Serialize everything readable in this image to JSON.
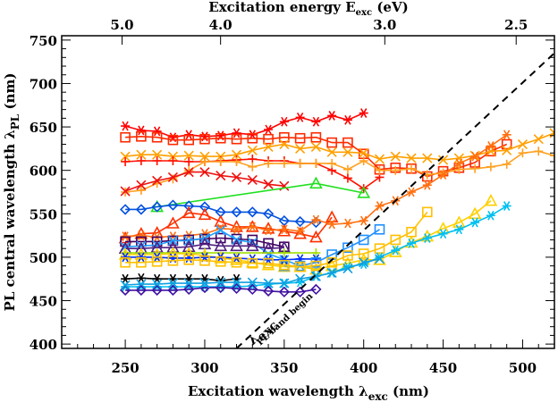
{
  "chart_data": {
    "type": "line",
    "title": "",
    "xlabel": "Excitation wavelength λ",
    "xlabel_sub": "exc",
    "xlabel_unit": "(nm)",
    "ylabel": "PL central wavelength λ",
    "ylabel_sub": "PL",
    "ylabel_unit": "(nm)",
    "top_xlabel": "Excitation energy E",
    "top_xlabel_sub": "exc",
    "top_xlabel_unit": "(eV)",
    "xlim": [
      210,
      520
    ],
    "ylim": [
      395,
      755
    ],
    "x_ticks": [
      250,
      300,
      350,
      400,
      450,
      500
    ],
    "x_tick_labels": [
      "250",
      "300",
      "350",
      "400",
      "450",
      "500"
    ],
    "y_ticks": [
      400,
      450,
      500,
      550,
      600,
      650,
      700,
      750
    ],
    "y_tick_labels": [
      "400",
      "450",
      "500",
      "550",
      "600",
      "650",
      "700",
      "750"
    ],
    "top_ticks_ev": [
      5.0,
      4.0,
      3.0,
      2.5
    ],
    "top_tick_labels": [
      "5.0",
      "4.0",
      "3.0",
      "2.5"
    ],
    "grid": false,
    "reference_line": {
      "label_upper": "λ_exc",
      "label_lower": "PL band begin",
      "style": "dashed",
      "x": [
        320,
        520
      ],
      "y": [
        395,
        735
      ]
    },
    "series": [
      {
        "name": "red-asterisk",
        "color": "#ff0000",
        "marker": "asterisk",
        "x": [
          250,
          260,
          270,
          280,
          290,
          300,
          310,
          320,
          330,
          340,
          350,
          360,
          370,
          380,
          390,
          400
        ],
        "y": [
          651,
          646,
          645,
          638,
          641,
          639,
          640,
          643,
          641,
          647,
          656,
          661,
          656,
          663,
          658,
          666
        ]
      },
      {
        "name": "red-square",
        "color": "#ff2a00",
        "marker": "square",
        "x": [
          250,
          260,
          270,
          280,
          290,
          300,
          310,
          320,
          330,
          340,
          350,
          360,
          370,
          380,
          390,
          400,
          410,
          420,
          430,
          440,
          450,
          460,
          470,
          480,
          490
        ],
        "y": [
          638,
          639,
          638,
          635,
          635,
          636,
          637,
          636,
          637,
          636,
          638,
          637,
          638,
          632,
          632,
          619,
          601,
          603,
          602,
          593,
          599,
          603,
          609,
          622,
          630
        ]
      },
      {
        "name": "orange-x",
        "color": "#ffa000",
        "marker": "x",
        "x": [
          250,
          260,
          270,
          280,
          290,
          300,
          310,
          320,
          330,
          340,
          350,
          360,
          370,
          380,
          390,
          400,
          410,
          420,
          430,
          440,
          450,
          460,
          470,
          480,
          490,
          500,
          510,
          520
        ],
        "y": [
          616,
          618,
          618,
          616,
          617,
          616,
          616,
          618,
          623,
          627,
          630,
          625,
          627,
          621,
          621,
          620,
          613,
          616,
          614,
          614,
          612,
          614,
          617,
          622,
          623,
          630,
          636,
          643
        ]
      },
      {
        "name": "red-plus",
        "color": "#ff1000",
        "marker": "plus",
        "x": [
          250,
          260,
          270,
          280,
          290,
          300,
          310,
          320,
          330,
          340,
          350,
          360,
          370,
          380,
          390,
          400,
          410
        ],
        "y": [
          610,
          611,
          611,
          611,
          610,
          610,
          611,
          612,
          613,
          611,
          611,
          608,
          608,
          600,
          591,
          579,
          592
        ]
      },
      {
        "name": "orange-plus",
        "color": "#ffa020",
        "marker": "plus",
        "x": [
          250,
          260,
          270,
          280,
          290,
          300,
          310,
          320,
          330,
          340,
          350,
          360,
          370,
          380,
          390,
          400,
          410,
          420,
          430,
          440,
          450,
          460,
          470,
          480,
          490,
          500,
          510,
          520
        ],
        "y": [
          575,
          577,
          585,
          590,
          600,
          610,
          610,
          610,
          604,
          608,
          608,
          608,
          608,
          608,
          601,
          611,
          600,
          600,
          602,
          595,
          597,
          601,
          602,
          604,
          607,
          620,
          622,
          617
        ]
      },
      {
        "name": "red-x",
        "color": "#ee1010",
        "marker": "x",
        "x": [
          250,
          260,
          270,
          280,
          290,
          300,
          310,
          320,
          330,
          340,
          350
        ],
        "y": [
          576,
          583,
          588,
          592,
          598,
          598,
          594,
          592,
          589,
          584,
          582
        ]
      },
      {
        "name": "green-triangle",
        "color": "#20e020",
        "marker": "triangle",
        "x": [
          270,
          370,
          400
        ],
        "y": [
          558,
          585,
          574
        ]
      },
      {
        "name": "blue-diamond",
        "color": "#0050e0",
        "marker": "diamond",
        "x": [
          250,
          260,
          270,
          280,
          290,
          300,
          310,
          320,
          330,
          340,
          350,
          360,
          370
        ],
        "y": [
          555,
          555,
          558,
          560,
          559,
          558,
          552,
          552,
          552,
          550,
          542,
          541,
          540
        ]
      },
      {
        "name": "orange-red-triangle",
        "color": "#ff3000",
        "marker": "triangle",
        "x": [
          250,
          260,
          270,
          280,
          290,
          300,
          310,
          320,
          330,
          340,
          350,
          360,
          370,
          380
        ],
        "y": [
          522,
          527,
          528,
          539,
          551,
          549,
          541,
          535,
          535,
          533,
          530,
          527,
          523,
          546
        ]
      },
      {
        "name": "orange-asterisk",
        "color": "#ff7010",
        "marker": "asterisk",
        "x": [
          250,
          260,
          270,
          280,
          290,
          300,
          310,
          320,
          330,
          340,
          350,
          360,
          370,
          380,
          390,
          400,
          410,
          420,
          430,
          440,
          450,
          460,
          470,
          480,
          490
        ],
        "y": [
          524,
          525,
          523,
          524,
          525,
          527,
          533,
          532,
          535,
          531,
          532,
          530,
          543,
          538,
          539,
          542,
          559,
          565,
          575,
          583,
          595,
          608,
          616,
          628,
          641
        ]
      },
      {
        "name": "dark-purple-square",
        "color": "#400060",
        "marker": "square",
        "x": [
          250,
          260,
          270,
          280,
          290,
          300,
          310,
          320,
          330,
          340,
          350
        ],
        "y": [
          518,
          518,
          518,
          519,
          520,
          521,
          522,
          521,
          520,
          516,
          512
        ]
      },
      {
        "name": "light-blue-x",
        "color": "#20a0ff",
        "marker": "x",
        "x": [
          250,
          260,
          270,
          280,
          290,
          300,
          310,
          320,
          330,
          340,
          350,
          360,
          370
        ],
        "y": [
          512,
          513,
          514,
          519,
          519,
          522,
          531,
          520,
          517,
          504,
          497,
          490,
          486
        ]
      },
      {
        "name": "purple-triangle",
        "color": "#502080",
        "marker": "triangle",
        "x": [
          250,
          260,
          270,
          280,
          290,
          300,
          310,
          320,
          330,
          340,
          350
        ],
        "y": [
          510,
          510,
          511,
          511,
          512,
          515,
          513,
          513,
          513,
          510,
          511
        ]
      },
      {
        "name": "yellow-green-plus",
        "color": "#a0e000",
        "marker": "plus",
        "x": [
          250,
          300,
          350,
          370
        ],
        "y": [
          505,
          505,
          505,
          505
        ]
      },
      {
        "name": "yellow-triangle",
        "color": "#ffd000",
        "marker": "triangle",
        "x": [
          250,
          260,
          270,
          280,
          290,
          300,
          310,
          320,
          330,
          340,
          350,
          360,
          370,
          380,
          390,
          400,
          410,
          420,
          430,
          440,
          450,
          460,
          470,
          480
        ],
        "y": [
          503,
          503,
          503,
          504,
          504,
          502,
          499,
          497,
          494,
          491,
          489,
          489,
          486,
          490,
          493,
          497,
          497,
          506,
          517,
          524,
          533,
          540,
          550,
          565
        ]
      },
      {
        "name": "blue-asterisk",
        "color": "#0030ff",
        "marker": "asterisk",
        "x": [
          250,
          260,
          270,
          280,
          290,
          300,
          310,
          320,
          330,
          340,
          350,
          360,
          370
        ],
        "y": [
          500,
          500,
          500,
          499,
          499,
          500,
          500,
          499,
          498,
          497,
          497,
          498,
          498
        ]
      },
      {
        "name": "blue-square",
        "color": "#2090ff",
        "marker": "square",
        "x": [
          350,
          360,
          370,
          380,
          390,
          400,
          410
        ],
        "y": [
          490,
          490,
          494,
          503,
          511,
          520,
          532
        ]
      },
      {
        "name": "gold-square",
        "color": "#ffc000",
        "marker": "square",
        "x": [
          250,
          260,
          270,
          280,
          290,
          300,
          310,
          320,
          330,
          340,
          350,
          360,
          370,
          380,
          390,
          400,
          410,
          420,
          430,
          440
        ],
        "y": [
          494,
          494,
          495,
          496,
          497,
          496,
          495,
          494,
          493,
          493,
          491,
          489,
          490,
          494,
          502,
          504,
          510,
          520,
          529,
          552
        ]
      },
      {
        "name": "black-asterisk",
        "color": "#000000",
        "marker": "asterisk",
        "x": [
          250,
          260,
          270,
          280,
          290,
          300,
          310,
          320
        ],
        "y": [
          475,
          476,
          475,
          475,
          475,
          475,
          473,
          475
        ]
      },
      {
        "name": "cyan-asterisk",
        "color": "#00c0f0",
        "marker": "asterisk",
        "x": [
          250,
          260,
          270,
          280,
          290,
          300,
          310,
          320,
          330,
          340,
          350,
          360,
          370,
          380,
          390,
          400,
          410,
          420,
          430,
          440,
          450,
          460,
          470,
          480,
          490
        ],
        "y": [
          466,
          466,
          466,
          466,
          466,
          466,
          466,
          466,
          467,
          469,
          470,
          471,
          478,
          482,
          489,
          492,
          500,
          508,
          516,
          522,
          527,
          532,
          540,
          548,
          559
        ]
      },
      {
        "name": "indigo-diamond",
        "color": "#4010a0",
        "marker": "diamond",
        "x": [
          250,
          260,
          270,
          280,
          290,
          300,
          310,
          320,
          330,
          340,
          350,
          360,
          370
        ],
        "y": [
          462,
          462,
          462,
          462,
          463,
          465,
          465,
          464,
          463,
          461,
          460,
          460,
          463
        ]
      },
      {
        "name": "sky-x",
        "color": "#10a0e0",
        "marker": "x",
        "x": [
          250,
          260,
          270,
          280,
          290,
          300,
          310,
          320,
          330,
          340,
          350,
          360,
          370,
          380,
          390,
          400,
          410
        ],
        "y": [
          468,
          469,
          469,
          470,
          470,
          470,
          471,
          471,
          471,
          470,
          470,
          475,
          478,
          482,
          487,
          494,
          498
        ]
      }
    ]
  }
}
